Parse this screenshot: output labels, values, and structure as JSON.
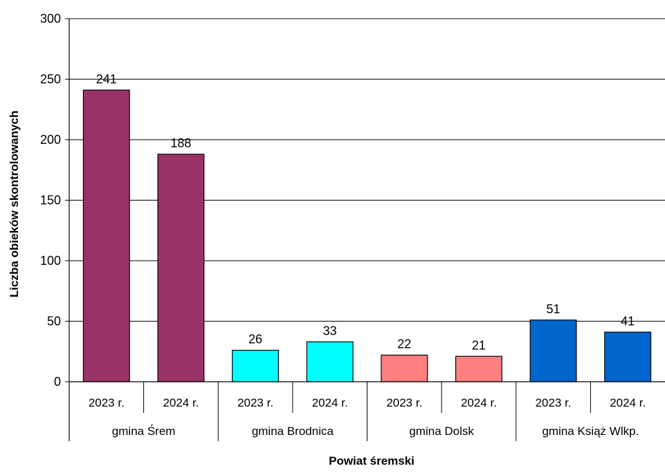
{
  "chart_data": {
    "type": "bar",
    "title": "",
    "xlabel": "Powiat śremski",
    "ylabel": "Liczba obieków skontrolowanych",
    "ylim": [
      0,
      300
    ],
    "yticks": [
      0,
      50,
      100,
      150,
      200,
      250,
      300
    ],
    "grid": true,
    "legend": "none",
    "groups": [
      {
        "label": "gmina Śrem",
        "color": "#993366",
        "bars": [
          {
            "category": "2023 r.",
            "value": 241
          },
          {
            "category": "2024 r.",
            "value": 188
          }
        ]
      },
      {
        "label": "gmina Brodnica",
        "color": "#00FFFF",
        "bars": [
          {
            "category": "2023 r.",
            "value": 26
          },
          {
            "category": "2024 r.",
            "value": 33
          }
        ]
      },
      {
        "label": "gmina Dolsk",
        "color": "#FF8080",
        "bars": [
          {
            "category": "2023 r.",
            "value": 22
          },
          {
            "category": "2024 r.",
            "value": 21
          }
        ]
      },
      {
        "label": "gmina Książ Wlkp.",
        "color": "#0066CC",
        "bars": [
          {
            "category": "2023 r.",
            "value": 51
          },
          {
            "category": "2024 r.",
            "value": 41
          }
        ]
      }
    ]
  }
}
